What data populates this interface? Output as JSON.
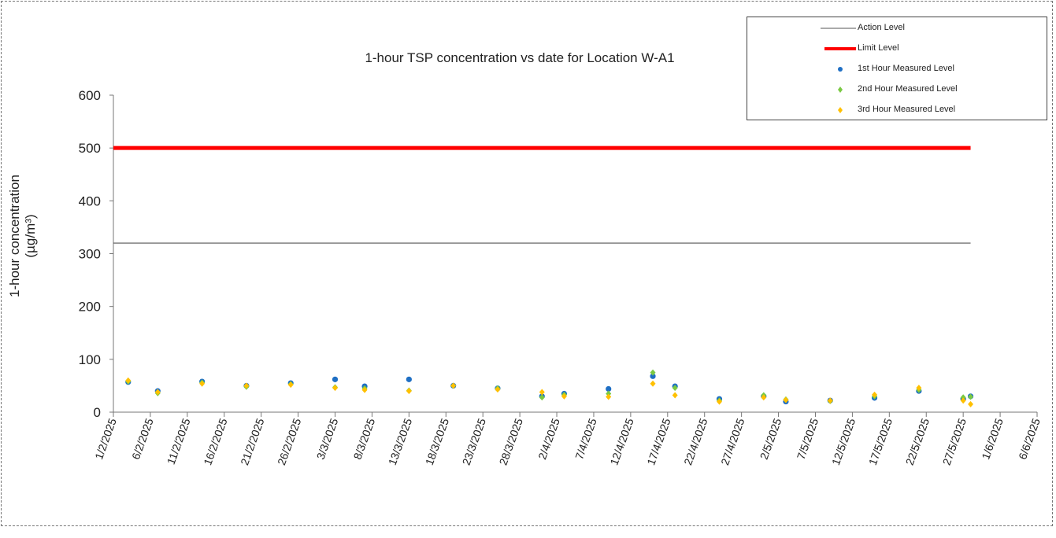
{
  "chart_data": {
    "type": "scatter",
    "title": "1-hour TSP concentration vs date for Location W-A1",
    "ylabel_line1": "1-hour concentration",
    "ylabel_line2": "(µg/m³)",
    "ylim": [
      0,
      600
    ],
    "yticks": [
      0,
      100,
      200,
      300,
      400,
      500,
      600
    ],
    "xlim": [
      "2025-02-01",
      "2025-06-06"
    ],
    "xtick_labels": [
      "1/2/2025",
      "6/2/2025",
      "11/2/2025",
      "16/2/2025",
      "21/2/2025",
      "26/2/2025",
      "3/3/2025",
      "8/3/2025",
      "13/3/2025",
      "18/3/2025",
      "23/3/2025",
      "28/3/2025",
      "2/4/2025",
      "7/4/2025",
      "12/4/2025",
      "17/4/2025",
      "22/4/2025",
      "27/4/2025",
      "2/5/2025",
      "7/5/2025",
      "12/5/2025",
      "17/5/2025",
      "22/5/2025",
      "27/5/2025",
      "1/6/2025",
      "6/6/2025"
    ],
    "grid": false,
    "legend_position": "top-right",
    "reference_lines": [
      {
        "name": "Action Level",
        "value": 320,
        "x_range": [
          "2025-02-01",
          "2025-05-28"
        ],
        "color": "#555555"
      },
      {
        "name": "Limit Level",
        "value": 500,
        "x_range": [
          "2025-02-01",
          "2025-05-28"
        ],
        "color": "#ff0000"
      }
    ],
    "series": [
      {
        "name": "1st Hour Measured Level",
        "color": "#1f6fc4",
        "x": [
          "2025-02-03",
          "2025-02-07",
          "2025-02-13",
          "2025-02-19",
          "2025-02-25",
          "2025-03-03",
          "2025-03-07",
          "2025-03-13",
          "2025-03-19",
          "2025-03-25",
          "2025-03-31",
          "2025-04-03",
          "2025-04-09",
          "2025-04-15",
          "2025-04-18",
          "2025-04-24",
          "2025-04-30",
          "2025-05-03",
          "2025-05-09",
          "2025-05-15",
          "2025-05-21",
          "2025-05-27",
          "2025-05-28"
        ],
        "y": [
          57,
          40,
          58,
          50,
          55,
          62,
          49,
          62,
          50,
          45,
          30,
          35,
          44,
          68,
          49,
          25,
          30,
          20,
          22,
          27,
          40,
          25,
          30
        ]
      },
      {
        "name": "2nd Hour Measured Level",
        "color": "#7ac943",
        "x": [
          "2025-02-03",
          "2025-02-07",
          "2025-02-13",
          "2025-02-19",
          "2025-02-25",
          "2025-03-03",
          "2025-03-07",
          "2025-03-13",
          "2025-03-19",
          "2025-03-25",
          "2025-03-31",
          "2025-04-03",
          "2025-04-09",
          "2025-04-15",
          "2025-04-18",
          "2025-04-24",
          "2025-04-30",
          "2025-05-03",
          "2025-05-09",
          "2025-05-15",
          "2025-05-21",
          "2025-05-27",
          "2025-05-28"
        ],
        "y": [
          58,
          36,
          56,
          48,
          53,
          47,
          45,
          41,
          50,
          45,
          28,
          33,
          35,
          75,
          46,
          22,
          32,
          24,
          21,
          30,
          42,
          28,
          29
        ]
      },
      {
        "name": "3rd Hour Measured Level",
        "color": "#ffc000",
        "x": [
          "2025-02-03",
          "2025-02-07",
          "2025-02-13",
          "2025-02-19",
          "2025-02-25",
          "2025-03-03",
          "2025-03-07",
          "2025-03-13",
          "2025-03-19",
          "2025-03-25",
          "2025-03-31",
          "2025-04-03",
          "2025-04-09",
          "2025-04-15",
          "2025-04-18",
          "2025-04-24",
          "2025-04-30",
          "2025-05-03",
          "2025-05-09",
          "2025-05-15",
          "2025-05-21",
          "2025-05-27",
          "2025-05-28"
        ],
        "y": [
          60,
          38,
          54,
          50,
          52,
          46,
          42,
          40,
          50,
          43,
          38,
          30,
          29,
          54,
          32,
          20,
          28,
          23,
          22,
          33,
          46,
          22,
          15
        ]
      }
    ]
  }
}
